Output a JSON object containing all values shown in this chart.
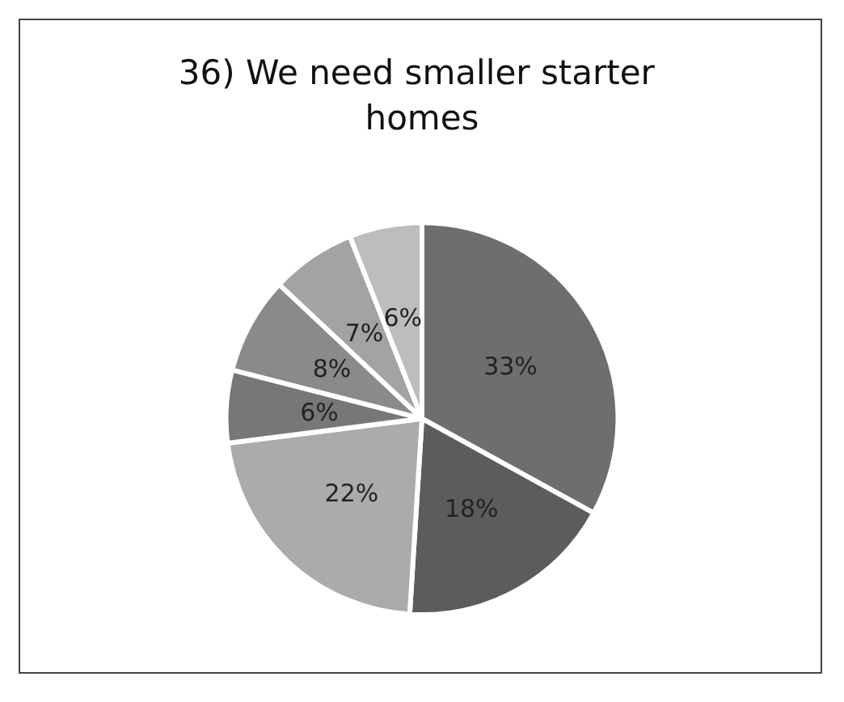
{
  "chart_data": {
    "type": "pie",
    "title": "36) We need smaller starter homes",
    "categories": [
      null,
      null,
      null,
      null,
      null,
      null,
      null
    ],
    "values": [
      33,
      18,
      22,
      6,
      8,
      7,
      6
    ],
    "colors": [
      "#6e6e6e",
      "#5c5c5c",
      "#ababab",
      "#777777",
      "#8a8a8a",
      "#a3a3a3",
      "#bdbdbd"
    ],
    "value_labels": [
      "33%",
      "18%",
      "22%",
      "6%",
      "8%",
      "7%",
      "6%"
    ]
  }
}
